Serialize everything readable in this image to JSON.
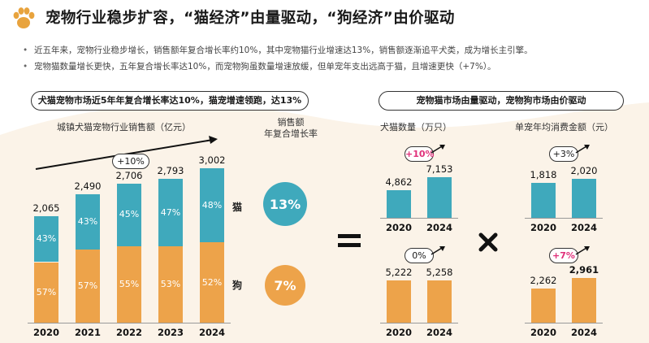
{
  "header": {
    "title": "宠物行业稳步扩容，“猫经济”由量驱动，“狗经济”由价驱动",
    "paw_icon": "paw-icon",
    "accent_color": "#E8A33D",
    "bullets": [
      "近五年来，宠物行业稳步增长，销售额年复合增长率约10%，其中宠物猫行业增速达13%，销售额逐渐追平犬类，成为增长主引擎。",
      "宠物猫数量增长更快，五年复合增长率达10%，而宠物狗虽数量增速放缓，但单宠年支出远高于猫，且增速更快（+7%）。"
    ]
  },
  "left_panel": {
    "banner": "犬猫宠物市场近5年年复合增长率达10%，猫宠增速领跑，达13%",
    "chart_title": "城镇犬猫宠物行业销售额（亿元）",
    "total_growth": "+10%",
    "cagr_header_line1": "销售额",
    "cagr_header_line2": "年复合增长率",
    "cat_label": "猫",
    "dog_label": "狗",
    "cat_cagr": "13%",
    "dog_cagr": "7%"
  },
  "right_panel": {
    "banner": "宠物猫市场由量驱动，宠物狗市场由价驱动",
    "count_title": "犬猫数量（万只）",
    "spend_title": "单宠年均消费金额（元）",
    "multiply_icon": "multiply-icon"
  },
  "colors": {
    "cat": "#3FA9BC",
    "dog": "#EDA34A",
    "cagr_cat_circle": "#3FA9BC",
    "cagr_dog_circle": "#EDA34A",
    "growth_highlight": "#E0307A",
    "wave": "#FBF3E8"
  },
  "chart_data": [
    {
      "type": "bar",
      "stacked": true,
      "title": "城镇犬猫宠物行业销售额（亿元）",
      "categories": [
        "2020",
        "2021",
        "2022",
        "2023",
        "2024"
      ],
      "totals": [
        2065,
        2490,
        2706,
        2793,
        3002
      ],
      "total_labels": [
        "2,065",
        "2,490",
        "2,706",
        "2,793",
        "3,002"
      ],
      "series": [
        {
          "name": "猫",
          "share_pct": [
            43,
            43,
            45,
            47,
            48
          ],
          "labels": [
            "43%",
            "43%",
            "45%",
            "47%",
            "48%"
          ]
        },
        {
          "name": "狗",
          "share_pct": [
            57,
            57,
            55,
            53,
            52
          ],
          "labels": [
            "57%",
            "57%",
            "55%",
            "53%",
            "52%"
          ]
        }
      ],
      "growth_label": "+10%"
    },
    {
      "type": "bar",
      "title": "犬猫数量（万只）",
      "series_name": "猫",
      "categories": [
        "2020",
        "2024"
      ],
      "values": [
        4862,
        7153
      ],
      "labels": [
        "4,862",
        "7,153"
      ],
      "growth_label": "+10%",
      "highlight": true
    },
    {
      "type": "bar",
      "series_name": "狗",
      "categories": [
        "2020",
        "2024"
      ],
      "values": [
        5222,
        5258
      ],
      "labels": [
        "5,222",
        "5,258"
      ],
      "growth_label": "0%",
      "highlight": false
    },
    {
      "type": "bar",
      "title": "单宠年均消费金额（元）",
      "series_name": "猫",
      "categories": [
        "2020",
        "2024"
      ],
      "values": [
        1818,
        2020
      ],
      "labels": [
        "1,818",
        "2,020"
      ],
      "growth_label": "+3%",
      "highlight": false
    },
    {
      "type": "bar",
      "series_name": "狗",
      "categories": [
        "2020",
        "2024"
      ],
      "values": [
        2262,
        2961
      ],
      "labels": [
        "2,262",
        "2,961"
      ],
      "growth_label": "+7%",
      "highlight": true
    }
  ]
}
